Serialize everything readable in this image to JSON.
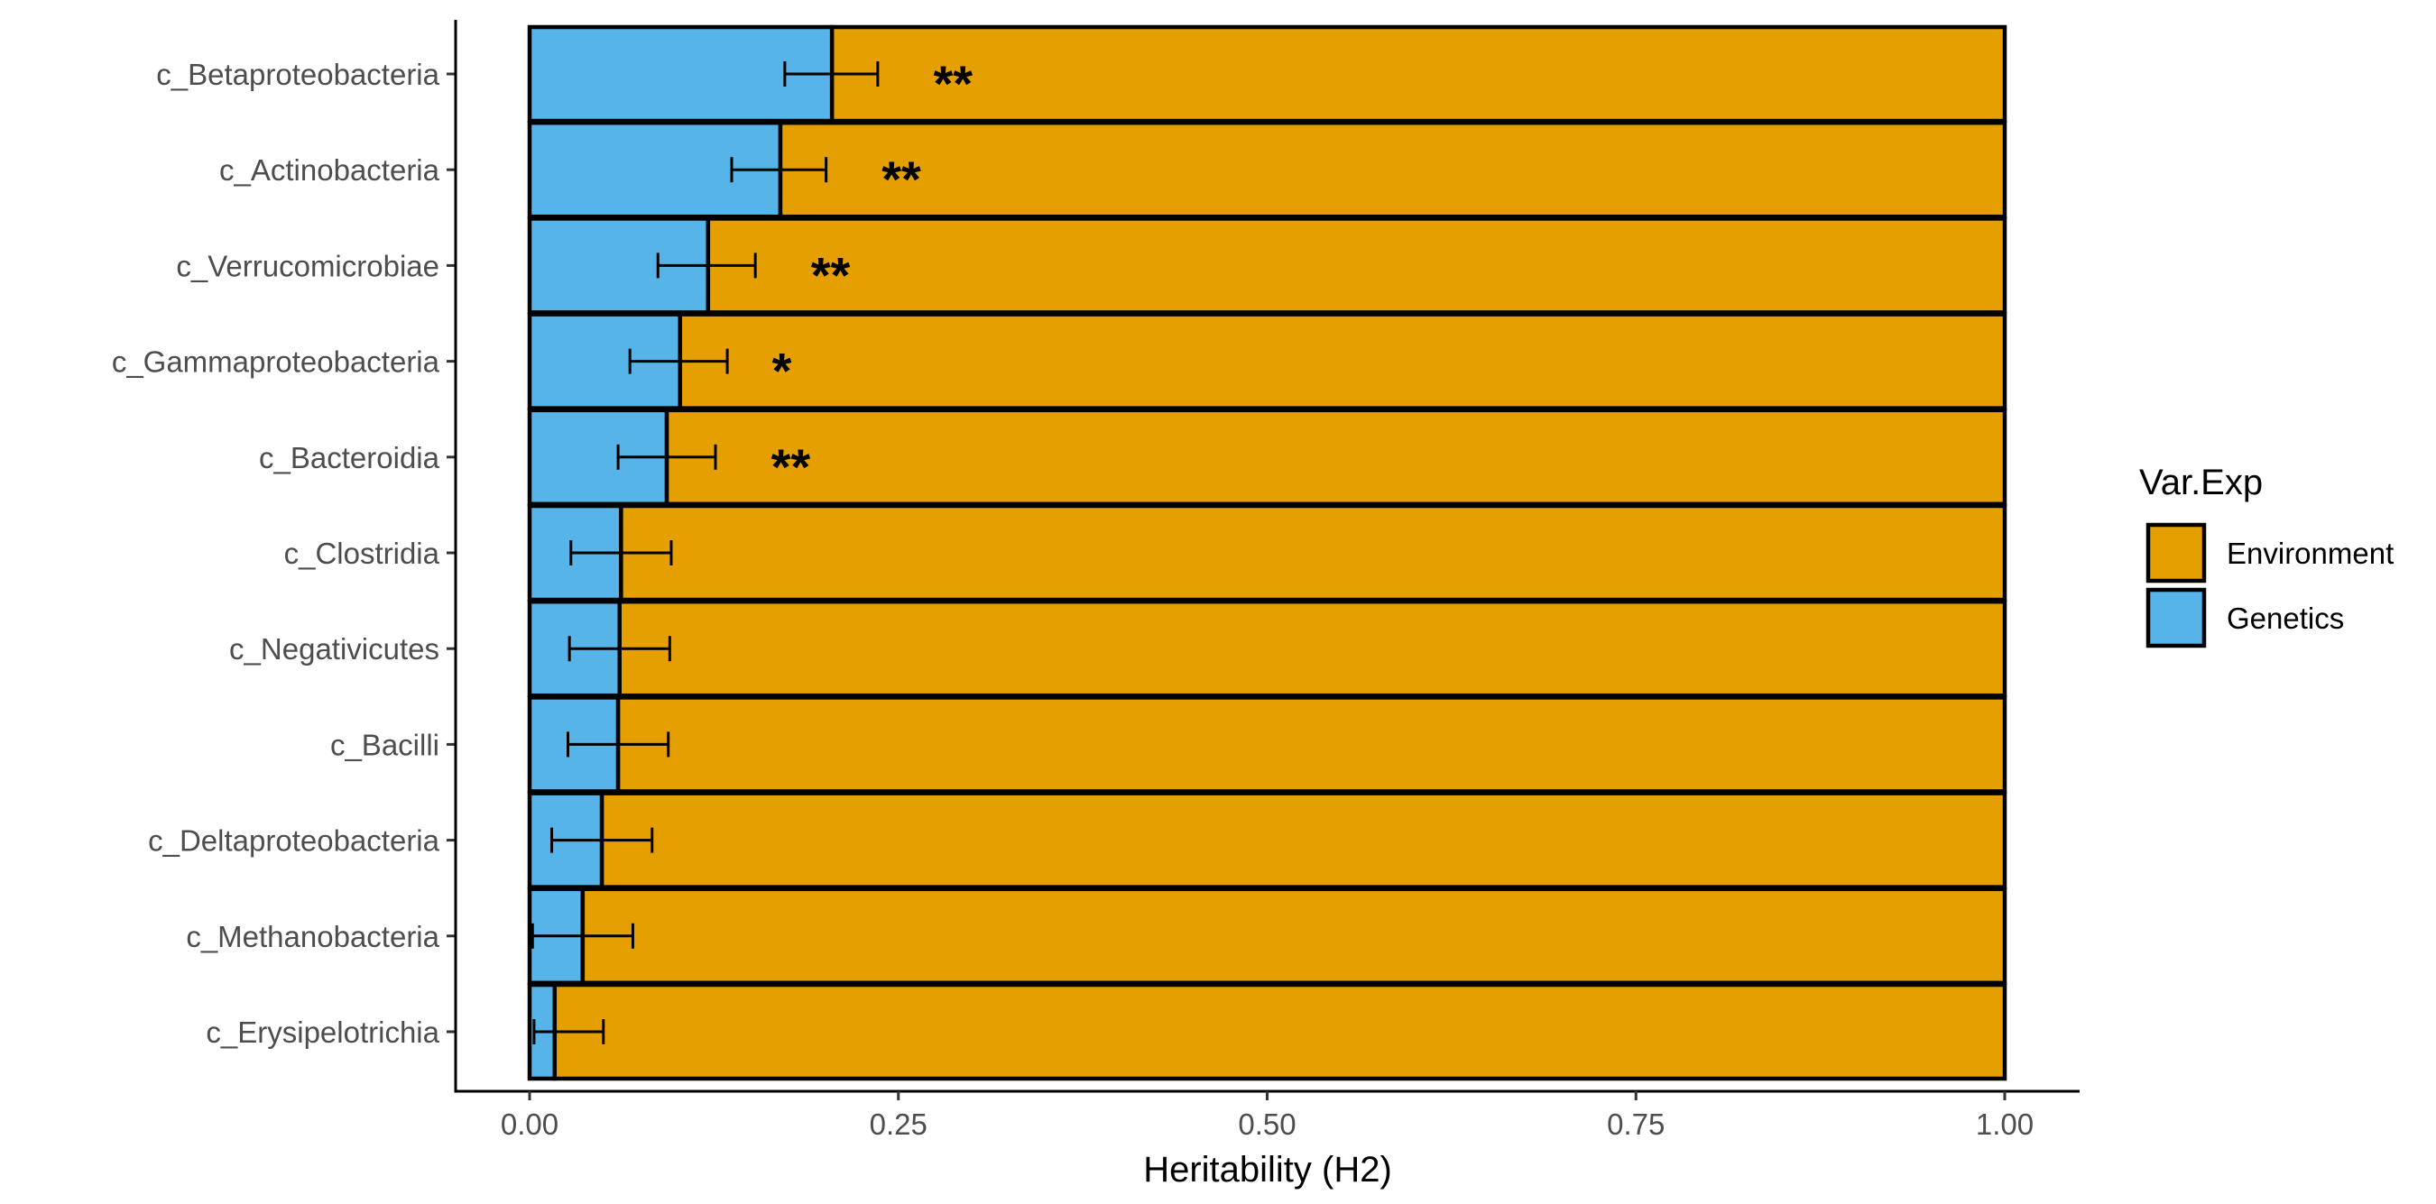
{
  "chart_data": {
    "type": "bar",
    "orientation": "horizontal",
    "stacked": true,
    "xlabel": "Heritability (H2)",
    "ylabel": "",
    "title": "",
    "xlim": [
      -0.05,
      1.05
    ],
    "x_ticks": [
      0,
      0.25,
      0.5,
      0.75,
      1.0
    ],
    "x_tick_labels": [
      "0.00",
      "0.25",
      "0.50",
      "0.75",
      "1.00"
    ],
    "categories": [
      "c_Betaproteobacteria",
      "c_Actinobacteria",
      "c_Verrucomicrobiae",
      "c_Gammaproteobacteria",
      "c_Bacteroidia",
      "c_Clostridia",
      "c_Negativicutes",
      "c_Bacilli",
      "c_Deltaproteobacteria",
      "c_Methanobacteria",
      "c_Erysipelotrichia"
    ],
    "series": [
      {
        "name": "Genetics",
        "color": "#56B4E9",
        "values": [
          0.205,
          0.17,
          0.121,
          0.102,
          0.093,
          0.062,
          0.061,
          0.06,
          0.049,
          0.036,
          0.017
        ]
      },
      {
        "name": "Environment",
        "color": "#E69F00",
        "values": [
          0.795,
          0.83,
          0.879,
          0.898,
          0.907,
          0.938,
          0.939,
          0.94,
          0.951,
          0.964,
          0.983
        ]
      }
    ],
    "error_bars": {
      "series": "Genetics",
      "low": [
        0.173,
        0.137,
        0.087,
        0.068,
        0.06,
        0.028,
        0.027,
        0.026,
        0.015,
        0.002,
        0.003
      ],
      "high": [
        0.236,
        0.201,
        0.153,
        0.134,
        0.126,
        0.096,
        0.095,
        0.094,
        0.083,
        0.07,
        0.05
      ]
    },
    "significance": [
      "**",
      "**",
      "**",
      "*",
      "**",
      "",
      "",
      "",
      "",
      "",
      ""
    ],
    "significance_x": [
      0.287,
      0.252,
      0.204,
      0.171,
      0.177,
      null,
      null,
      null,
      null,
      null,
      null
    ],
    "legend": {
      "title": "Var.Exp",
      "position": "right",
      "entries": [
        {
          "label": "Environment",
          "color": "#E69F00"
        },
        {
          "label": "Genetics",
          "color": "#56B4E9"
        }
      ]
    },
    "grid": false
  }
}
